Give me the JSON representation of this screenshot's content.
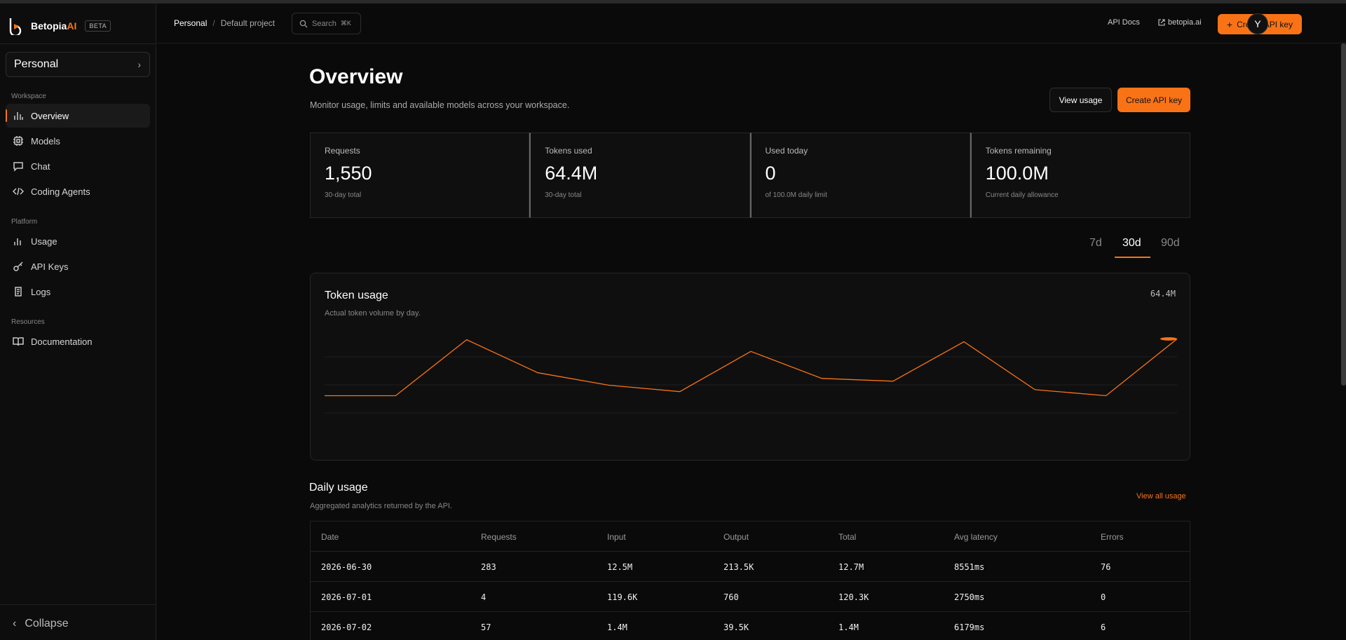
{
  "brand": {
    "name": "Betopia",
    "name_accent": "AI",
    "badge": "BETA"
  },
  "sidebar": {
    "workspace_selector": "Personal",
    "sections": {
      "workspace": "Workspace",
      "platform": "Platform",
      "resources": "Resources"
    },
    "items": [
      {
        "label": "Overview",
        "icon": "bar-chart-icon",
        "active": true
      },
      {
        "label": "Models",
        "icon": "cpu-icon"
      },
      {
        "label": "Chat",
        "icon": "chat-bubble-icon"
      },
      {
        "label": "Coding Agents",
        "icon": "code-icon"
      },
      {
        "label": "Usage",
        "icon": "bar-chart-icon"
      },
      {
        "label": "API Keys",
        "icon": "key-icon"
      },
      {
        "label": "Logs",
        "icon": "scroll-icon"
      },
      {
        "label": "Documentation",
        "icon": "book-icon"
      }
    ],
    "collapse_label": "Collapse"
  },
  "topbar": {
    "breadcrumb": [
      "Personal",
      "Default project"
    ],
    "breadcrumb_sep": "/",
    "search_placeholder": "Search",
    "search_shortcut": "⌘K",
    "api_docs": "API Docs",
    "site_link": "betopia.ai",
    "create_key": "Create API key",
    "avatar_initial": "Y"
  },
  "overview": {
    "title": "Overview",
    "subtitle": "Monitor usage, limits and available models across your workspace.",
    "view_usage": "View usage",
    "create_key": "Create API key"
  },
  "stats": [
    {
      "label": "Requests",
      "value": "1,550",
      "note": "30-day total"
    },
    {
      "label": "Tokens used",
      "value": "64.4M",
      "note": "30-day total"
    },
    {
      "label": "Used today",
      "value": "0",
      "note": "of 100.0M daily limit"
    },
    {
      "label": "Tokens remaining",
      "value": "100.0M",
      "note": "Current daily allowance"
    }
  ],
  "range_tabs": {
    "items": [
      "7d",
      "30d",
      "90d"
    ],
    "active": "30d"
  },
  "token_chart": {
    "title": "Token usage",
    "subtitle": "Actual token volume by day.",
    "total": "64.4M"
  },
  "chart_data": {
    "type": "line",
    "title": "Token usage",
    "series": [
      {
        "values": [
          2.7,
          2.7,
          16.6,
          8.4,
          5.3,
          3.7,
          13.7,
          7.0,
          6.3,
          16.1,
          4.2,
          2.7,
          16.8
        ]
      }
    ],
    "color": "#f97316",
    "grid": true
  },
  "daily_usage": {
    "title": "Daily usage",
    "subtitle": "Aggregated analytics returned by the API.",
    "view_all": "View all usage",
    "columns": [
      "Date",
      "Requests",
      "Input",
      "Output",
      "Total",
      "Avg latency",
      "Errors"
    ],
    "rows": [
      [
        "2026-06-30",
        "283",
        "12.5M",
        "213.5K",
        "12.7M",
        "8551ms",
        "76"
      ],
      [
        "2026-07-01",
        "4",
        "119.6K",
        "760",
        "120.3K",
        "2750ms",
        "0"
      ],
      [
        "2026-07-02",
        "57",
        "1.4M",
        "39.5K",
        "1.4M",
        "6179ms",
        "6"
      ]
    ]
  },
  "colors": {
    "accent": "#f97316",
    "background": "#0a0a0a",
    "card": "#0f0f0f"
  }
}
